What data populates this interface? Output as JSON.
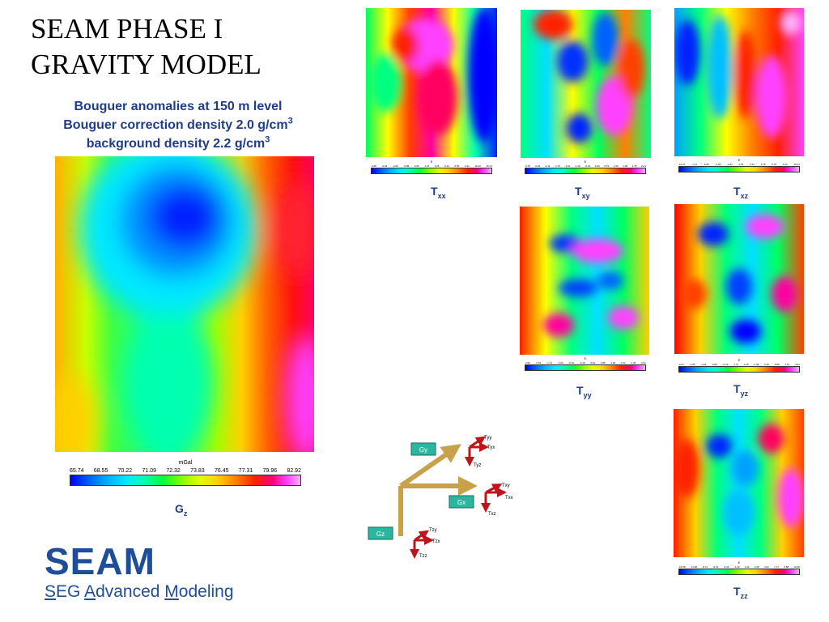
{
  "title": {
    "line1": "SEAM PHASE I",
    "line2": "GRAVITY MODEL"
  },
  "subtitle": {
    "line1": "Bouguer anomalies at 150 m level",
    "line2_text": "Bouguer correction density 2.0 g/cm",
    "line2_sup": "3",
    "line3_text": "background density 2.2 g/cm",
    "line3_sup": "3"
  },
  "gz": {
    "label_main": "G",
    "label_sub": "z",
    "colorbar_unit": "mGal",
    "colorbar_ticks": [
      "65.74",
      "68.55",
      "70.22",
      "71.09",
      "72.32",
      "73.83",
      "76.45",
      "77.31",
      "79.96",
      "82.92"
    ]
  },
  "tensors": [
    {
      "id": "txx",
      "main": "T",
      "sub": "xx",
      "unit": "E",
      "ticks": [
        "-4.08",
        "-2.94",
        "-2.06",
        "-0.89",
        "0.06",
        "1.70",
        "1.26",
        "0.21",
        "0.50",
        "0.21",
        "10.20",
        "15.74"
      ]
    },
    {
      "id": "txy",
      "main": "T",
      "sub": "xy",
      "unit": "E",
      "ticks": [
        "-3.79",
        "-2.61",
        "-2.11",
        "-1.70",
        "-1.01",
        "-1.16",
        "-0.61",
        "0.46",
        "0.79",
        "1.30",
        "1.48",
        "1.78",
        "2.21"
      ]
    },
    {
      "id": "txz",
      "main": "T",
      "sub": "xz",
      "unit": "E",
      "ticks": [
        "-10.01",
        "-7.21",
        "-5.09",
        "-4.09",
        "-2.91",
        "0.81",
        "2.67",
        "4.76",
        "6.79",
        "9.10",
        "10.01"
      ]
    },
    {
      "id": "tyy",
      "main": "T",
      "sub": "yy",
      "unit": "E",
      "ticks": [
        "-3.90",
        "-2.51",
        "-1.74",
        "-1.20",
        "-0.62",
        "-0.10",
        "0.40",
        "0.85",
        "1.00",
        "1.61",
        "2.40",
        "3.31"
      ]
    },
    {
      "id": "tyz",
      "main": "T",
      "sub": "yz",
      "unit": "E",
      "ticks": [
        "-2.61",
        "-1.95",
        "-1.29",
        "-0.89",
        "-0.79",
        "1.71",
        "1.26",
        "0.48",
        "0.26",
        "0.86",
        "1.61",
        "4.01"
      ]
    },
    {
      "id": "tzz",
      "main": "T",
      "sub": "zz",
      "unit": "E",
      "ticks": [
        "-15.68",
        "-11.82",
        "-8.71",
        "-5.21",
        "-3.20",
        "-1.40",
        "0.46",
        "2.05",
        "4.21",
        "7.71",
        "9.88",
        "12.09"
      ]
    }
  ],
  "diagram": {
    "gx": "Gx",
    "gy": "Gy",
    "gz": "Gz",
    "txx": "Txx",
    "txy": "Txy",
    "txz": "Txz",
    "tyx": "Tyx",
    "tyy": "Tyy",
    "tyz": "Tyz",
    "tzx": "Tzx",
    "tzy": "Tzy",
    "tzz": "Tzz"
  },
  "logo": {
    "name": "SEAM",
    "tagline_u1": "S",
    "tagline_1": "EG ",
    "tagline_u2": "A",
    "tagline_2": "dvanced ",
    "tagline_u3": "M",
    "tagline_3": "odeling"
  },
  "colors": {
    "accent_blue": "#1f3d8a",
    "logo_blue": "#1f4e99",
    "arrow_gold": "#c8a24a",
    "arrow_red": "#c0141c",
    "box_teal": "#2bb6a0"
  }
}
